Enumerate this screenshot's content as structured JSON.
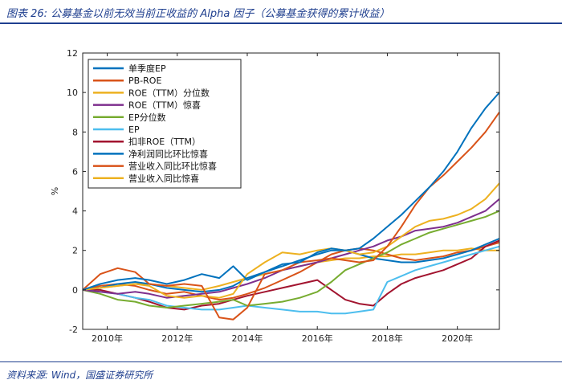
{
  "figure": {
    "title": "图表 26:  公募基金以前无效当前正收益的 Alpha 因子（公募基金获得的累计收益）",
    "source": "资料来源:  Wind，国盛证券研究所"
  },
  "chart_data": {
    "type": "line",
    "ylabel": "%",
    "xlabel": "",
    "ylim": [
      -2,
      12
    ],
    "xlim": [
      2009.3,
      2021.2
    ],
    "yticks": [
      -2,
      0,
      2,
      4,
      6,
      8,
      10,
      12
    ],
    "xticks": [
      2010,
      2012,
      2014,
      2016,
      2018,
      2020
    ],
    "xtick_labels": [
      "2010年",
      "2012年",
      "2014年",
      "2016年",
      "2018年",
      "2020年"
    ],
    "legend_position": "top-left",
    "series": [
      {
        "name": "单季度EP",
        "color": "#0072BD",
        "x": [
          2009.3,
          2009.8,
          2010.3,
          2010.8,
          2011.2,
          2011.7,
          2012.2,
          2012.7,
          2013.2,
          2013.6,
          2014.0,
          2014.5,
          2015.0,
          2015.5,
          2016.0,
          2016.4,
          2016.8,
          2017.2,
          2017.6,
          2018.0,
          2018.4,
          2018.8,
          2019.2,
          2019.6,
          2020.0,
          2020.4,
          2020.8,
          2021.2
        ],
        "values": [
          0,
          0.3,
          0.5,
          0.6,
          0.5,
          0.3,
          0.5,
          0.8,
          0.6,
          1.2,
          0.5,
          0.9,
          1.3,
          1.4,
          1.9,
          2.1,
          2.0,
          2.1,
          2.6,
          3.2,
          3.8,
          4.5,
          5.2,
          6.0,
          7.0,
          8.2,
          9.2,
          10.0
        ]
      },
      {
        "name": "PB-ROE",
        "color": "#D95319",
        "x": [
          2009.3,
          2009.8,
          2010.3,
          2010.8,
          2011.2,
          2011.7,
          2012.2,
          2012.7,
          2013.2,
          2013.6,
          2014.0,
          2014.5,
          2015.0,
          2015.5,
          2016.0,
          2016.4,
          2016.8,
          2017.2,
          2017.6,
          2018.0,
          2018.4,
          2018.8,
          2019.2,
          2019.6,
          2020.0,
          2020.4,
          2020.8,
          2021.2
        ],
        "values": [
          0,
          0.8,
          1.1,
          0.9,
          0.3,
          0.2,
          0.3,
          0.2,
          -1.4,
          -1.5,
          -0.9,
          0.8,
          1.0,
          1.4,
          1.5,
          1.6,
          1.5,
          1.4,
          1.5,
          2.2,
          3.2,
          4.3,
          5.2,
          5.8,
          6.5,
          7.2,
          8.0,
          9.0
        ]
      },
      {
        "name": "ROE（TTM）分位数",
        "color": "#EDB120",
        "x": [
          2009.3,
          2009.8,
          2010.3,
          2010.8,
          2011.2,
          2011.7,
          2012.2,
          2012.7,
          2013.2,
          2013.6,
          2014.0,
          2014.5,
          2015.0,
          2015.5,
          2016.0,
          2016.4,
          2016.8,
          2017.2,
          2017.6,
          2018.0,
          2018.4,
          2018.8,
          2019.2,
          2019.6,
          2020.0,
          2020.4,
          2020.8,
          2021.2
        ],
        "values": [
          0,
          0.1,
          0.2,
          0.3,
          0.2,
          -0.3,
          -0.4,
          -0.3,
          -0.4,
          -0.2,
          0.8,
          1.4,
          1.9,
          1.8,
          2.0,
          2.1,
          2.0,
          1.8,
          1.9,
          2.2,
          2.7,
          3.2,
          3.5,
          3.6,
          3.8,
          4.1,
          4.6,
          5.4
        ]
      },
      {
        "name": "ROE（TTM）惊喜",
        "color": "#7E2F8E",
        "x": [
          2009.3,
          2009.8,
          2010.3,
          2010.8,
          2011.2,
          2011.7,
          2012.2,
          2012.7,
          2013.2,
          2013.6,
          2014.0,
          2014.5,
          2015.0,
          2015.5,
          2016.0,
          2016.4,
          2016.8,
          2017.2,
          2017.6,
          2018.0,
          2018.4,
          2018.8,
          2019.2,
          2019.6,
          2020.0,
          2020.4,
          2020.8,
          2021.2
        ],
        "values": [
          0,
          -0.1,
          -0.2,
          -0.1,
          -0.2,
          -0.4,
          -0.3,
          -0.2,
          -0.1,
          0.1,
          0.3,
          0.6,
          1.0,
          1.2,
          1.4,
          1.6,
          1.8,
          2.0,
          2.2,
          2.5,
          2.7,
          3.0,
          3.1,
          3.2,
          3.4,
          3.7,
          4.0,
          4.6
        ]
      },
      {
        "name": "EP分位数",
        "color": "#77AC30",
        "x": [
          2009.3,
          2009.8,
          2010.3,
          2010.8,
          2011.2,
          2011.7,
          2012.2,
          2012.7,
          2013.2,
          2013.6,
          2014.0,
          2014.5,
          2015.0,
          2015.5,
          2016.0,
          2016.4,
          2016.8,
          2017.2,
          2017.6,
          2018.0,
          2018.4,
          2018.8,
          2019.2,
          2019.6,
          2020.0,
          2020.4,
          2020.8,
          2021.2
        ],
        "values": [
          0,
          -0.2,
          -0.5,
          -0.6,
          -0.8,
          -0.9,
          -0.8,
          -0.7,
          -0.6,
          -0.5,
          -0.8,
          -0.7,
          -0.6,
          -0.4,
          -0.1,
          0.4,
          1.0,
          1.3,
          1.6,
          1.9,
          2.3,
          2.6,
          2.9,
          3.1,
          3.3,
          3.5,
          3.7,
          4.0
        ]
      },
      {
        "name": "EP",
        "color": "#4DBEEE",
        "x": [
          2009.3,
          2009.8,
          2010.3,
          2010.8,
          2011.2,
          2011.7,
          2012.2,
          2012.7,
          2013.2,
          2013.6,
          2014.0,
          2014.5,
          2015.0,
          2015.5,
          2016.0,
          2016.4,
          2016.8,
          2017.2,
          2017.6,
          2018.0,
          2018.4,
          2018.8,
          2019.2,
          2019.6,
          2020.0,
          2020.4,
          2020.8,
          2021.2
        ],
        "values": [
          0,
          -0.1,
          -0.2,
          -0.4,
          -0.5,
          -0.8,
          -0.9,
          -1.0,
          -1.0,
          -0.9,
          -0.8,
          -0.9,
          -1.0,
          -1.1,
          -1.1,
          -1.2,
          -1.2,
          -1.1,
          -1.0,
          0.4,
          0.7,
          1.0,
          1.2,
          1.4,
          1.6,
          1.8,
          2.0,
          2.2
        ]
      },
      {
        "name": "扣非ROE（TTM）",
        "color": "#A2142F",
        "x": [
          2009.3,
          2009.8,
          2010.3,
          2010.8,
          2011.2,
          2011.7,
          2012.2,
          2012.7,
          2013.2,
          2013.6,
          2014.0,
          2014.5,
          2015.0,
          2015.5,
          2016.0,
          2016.4,
          2016.8,
          2017.2,
          2017.6,
          2018.0,
          2018.4,
          2018.8,
          2019.2,
          2019.6,
          2020.0,
          2020.4,
          2020.8,
          2021.2
        ],
        "values": [
          0,
          0.0,
          -0.2,
          -0.4,
          -0.6,
          -0.9,
          -1.0,
          -0.8,
          -0.7,
          -0.5,
          -0.3,
          -0.1,
          0.1,
          0.3,
          0.5,
          0.0,
          -0.5,
          -0.7,
          -0.8,
          -0.2,
          0.3,
          0.6,
          0.8,
          1.0,
          1.3,
          1.6,
          2.2,
          2.5
        ]
      },
      {
        "name": "净利润同比环比惊喜",
        "color": "#0072BD",
        "x": [
          2009.3,
          2009.8,
          2010.3,
          2010.8,
          2011.2,
          2011.7,
          2012.2,
          2012.7,
          2013.2,
          2013.6,
          2014.0,
          2014.5,
          2015.0,
          2015.5,
          2016.0,
          2016.4,
          2016.8,
          2017.2,
          2017.6,
          2018.0,
          2018.4,
          2018.8,
          2019.2,
          2019.6,
          2020.0,
          2020.4,
          2020.8,
          2021.2
        ],
        "values": [
          0,
          0.1,
          0.3,
          0.4,
          0.3,
          0.1,
          0.0,
          -0.1,
          0.0,
          0.2,
          0.6,
          0.9,
          1.2,
          1.5,
          1.8,
          2.0,
          2.0,
          1.8,
          1.6,
          1.5,
          1.4,
          1.4,
          1.5,
          1.6,
          1.8,
          2.0,
          2.3,
          2.6
        ]
      },
      {
        "name": "营业收入同比环比惊喜",
        "color": "#D95319",
        "x": [
          2009.3,
          2009.8,
          2010.3,
          2010.8,
          2011.2,
          2011.7,
          2012.2,
          2012.7,
          2013.2,
          2013.6,
          2014.0,
          2014.5,
          2015.0,
          2015.5,
          2016.0,
          2016.4,
          2016.8,
          2017.2,
          2017.6,
          2018.0,
          2018.4,
          2018.8,
          2019.2,
          2019.6,
          2020.0,
          2020.4,
          2020.8,
          2021.2
        ],
        "values": [
          0,
          0.2,
          0.3,
          0.2,
          0.0,
          -0.2,
          -0.1,
          -0.3,
          -0.5,
          -0.4,
          -0.2,
          0.1,
          0.5,
          0.9,
          1.4,
          1.8,
          2.0,
          2.1,
          2.0,
          1.8,
          1.6,
          1.5,
          1.6,
          1.7,
          1.9,
          2.0,
          2.2,
          2.4
        ]
      },
      {
        "name": "营业收入同比惊喜",
        "color": "#EDB120",
        "x": [
          2009.3,
          2009.8,
          2010.3,
          2010.8,
          2011.2,
          2011.7,
          2012.2,
          2012.7,
          2013.2,
          2013.6,
          2014.0,
          2014.5,
          2015.0,
          2015.5,
          2016.0,
          2016.4,
          2016.8,
          2017.2,
          2017.6,
          2018.0,
          2018.4,
          2018.8,
          2019.2,
          2019.6,
          2020.0,
          2020.4,
          2020.8,
          2021.2
        ],
        "values": [
          0,
          0.1,
          0.2,
          0.3,
          0.3,
          0.2,
          0.1,
          0.0,
          0.2,
          0.4,
          0.6,
          0.8,
          1.0,
          1.2,
          1.4,
          1.5,
          1.6,
          1.6,
          1.7,
          1.7,
          1.8,
          1.8,
          1.9,
          2.0,
          2.0,
          2.1,
          2.0,
          2.0
        ]
      }
    ]
  }
}
